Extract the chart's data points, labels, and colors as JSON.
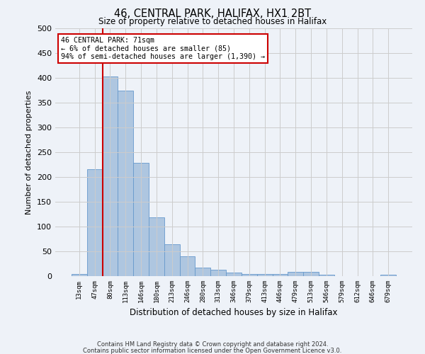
{
  "title": "46, CENTRAL PARK, HALIFAX, HX1 2BT",
  "subtitle": "Size of property relative to detached houses in Halifax",
  "xlabel": "Distribution of detached houses by size in Halifax",
  "ylabel": "Number of detached properties",
  "categories": [
    "13sqm",
    "47sqm",
    "80sqm",
    "113sqm",
    "146sqm",
    "180sqm",
    "213sqm",
    "246sqm",
    "280sqm",
    "313sqm",
    "346sqm",
    "379sqm",
    "413sqm",
    "446sqm",
    "479sqm",
    "513sqm",
    "546sqm",
    "579sqm",
    "612sqm",
    "646sqm",
    "679sqm"
  ],
  "values": [
    4,
    216,
    403,
    374,
    228,
    119,
    65,
    40,
    17,
    13,
    7,
    4,
    4,
    4,
    8,
    8,
    3,
    0,
    0,
    0,
    3
  ],
  "bar_color": "#aec6e0",
  "bar_edge_color": "#6699cc",
  "vline_x": 1.5,
  "vline_color": "#cc0000",
  "annotation_text": "46 CENTRAL PARK: 71sqm\n← 6% of detached houses are smaller (85)\n94% of semi-detached houses are larger (1,390) →",
  "annotation_box_color": "#ffffff",
  "annotation_box_edge_color": "#cc0000",
  "footnote1": "Contains HM Land Registry data © Crown copyright and database right 2024.",
  "footnote2": "Contains public sector information licensed under the Open Government Licence v3.0.",
  "ylim": [
    0,
    500
  ],
  "yticks": [
    0,
    50,
    100,
    150,
    200,
    250,
    300,
    350,
    400,
    450,
    500
  ],
  "grid_color": "#cccccc",
  "background_color": "#eef2f8",
  "plot_bg_color": "#eef2f8"
}
